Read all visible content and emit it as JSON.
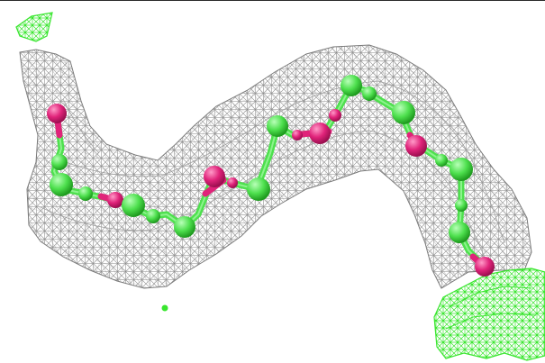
{
  "colors": {
    "background": "#ffffff",
    "mesh": "#8a8a8a",
    "mesh_bright": "#6f6f6f",
    "ligand_mesh": "#39e62e",
    "atom_green": "#4ee04e",
    "atom_magenta": "#e0237a",
    "bond": "#4ee04e"
  },
  "scene": {
    "description_visible": "",
    "icons": [
      "electron-density-mesh",
      "ball-and-stick-chain",
      "green-ligand-density"
    ]
  }
}
